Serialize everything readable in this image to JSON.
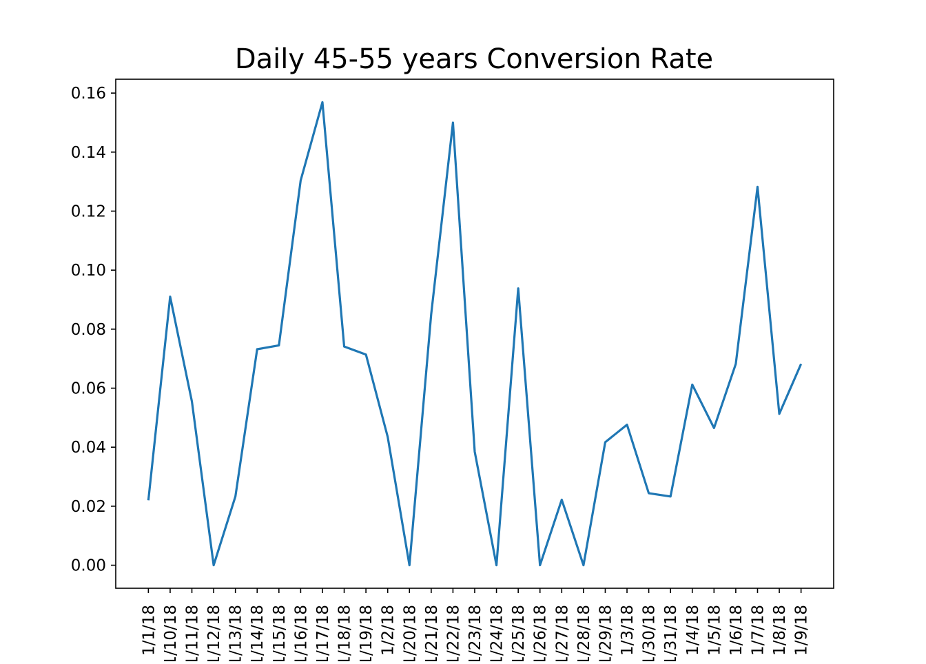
{
  "chart_data": {
    "type": "line",
    "title": "Daily 45-55 years Conversion Rate",
    "xlabel": "",
    "ylabel": "",
    "categories": [
      "1/1/18",
      "1/10/18",
      "1/11/18",
      "1/12/18",
      "1/13/18",
      "1/14/18",
      "1/15/18",
      "1/16/18",
      "1/17/18",
      "1/18/18",
      "1/19/18",
      "1/2/18",
      "1/20/18",
      "1/21/18",
      "1/22/18",
      "1/23/18",
      "1/24/18",
      "1/25/18",
      "1/26/18",
      "1/27/18",
      "1/28/18",
      "1/29/18",
      "1/3/18",
      "1/30/18",
      "1/31/18",
      "1/4/18",
      "1/5/18",
      "1/6/18",
      "1/7/18",
      "1/8/18",
      "1/9/18"
    ],
    "series": [
      {
        "values": [
          0.022,
          0.091,
          0.0555,
          0.0,
          0.0233,
          0.0732,
          0.0745,
          0.1304,
          0.1569,
          0.0741,
          0.0714,
          0.0435,
          0.0,
          0.0851,
          0.15,
          0.0385,
          0.0,
          0.0938,
          0.0,
          0.0222,
          0.0,
          0.0417,
          0.0476,
          0.0244,
          0.0233,
          0.0612,
          0.0465,
          0.0682,
          0.1282,
          0.0513,
          0.0682
        ]
      }
    ],
    "yticks": [
      "0.00",
      "0.02",
      "0.04",
      "0.06",
      "0.08",
      "0.10",
      "0.12",
      "0.14",
      "0.16"
    ],
    "ylim": [
      -0.0078,
      0.1647
    ],
    "grid": false,
    "legend": "none",
    "colors": {
      "line": "#1f77b4",
      "axes": "#000000",
      "background": "#ffffff"
    }
  }
}
